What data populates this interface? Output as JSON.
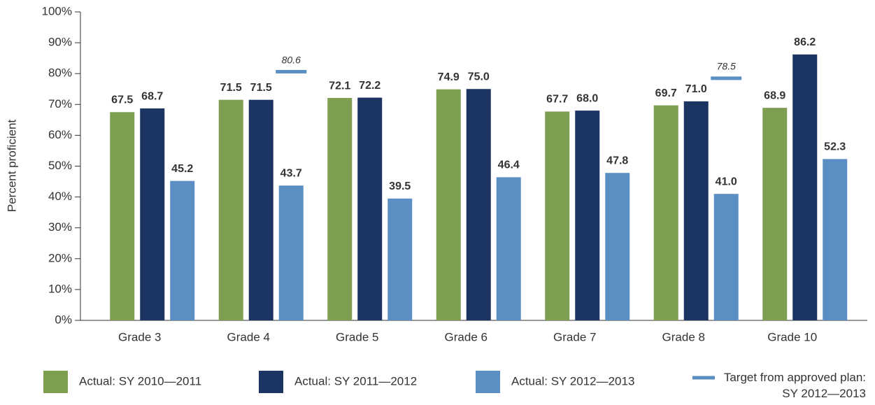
{
  "chart_data": {
    "type": "bar",
    "y_label": "Percent proficient",
    "categories": [
      "Grade 3",
      "Grade 4",
      "Grade 5",
      "Grade 6",
      "Grade 7",
      "Grade 8",
      "Grade 10"
    ],
    "series": [
      {
        "name": "Actual: SY 2010—2011",
        "color": "#7e9e52",
        "values": [
          67.5,
          71.5,
          72.1,
          74.9,
          67.7,
          69.7,
          68.9
        ],
        "value_labels": [
          "67.5",
          "71.5",
          "72.1",
          "74.9",
          "67.7",
          "69.7",
          "68.9"
        ]
      },
      {
        "name": "Actual: SY 2011—2012",
        "color": "#1c3461",
        "values": [
          68.7,
          71.5,
          72.2,
          75.0,
          68.0,
          71.0,
          86.2
        ],
        "value_labels": [
          "68.7",
          "71.5",
          "72.2",
          "75.0",
          "68.0",
          "71.0",
          "86.2"
        ]
      },
      {
        "name": "Actual: SY 2012—2013",
        "color": "#5b8fc4",
        "values": [
          45.2,
          43.7,
          39.5,
          46.4,
          47.8,
          41.0,
          52.3
        ],
        "value_labels": [
          "45.2",
          "43.7",
          "39.5",
          "46.4",
          "47.8",
          "41.0",
          "52.3"
        ]
      },
      {
        "name": "Target from approved plan: SY 2012—2013",
        "color": "#5b8fc4",
        "marker": "line",
        "values": [
          null,
          80.6,
          null,
          null,
          null,
          78.5,
          null
        ],
        "value_labels": [
          null,
          "80.6",
          null,
          null,
          null,
          "78.5",
          null
        ]
      }
    ],
    "ylim": [
      0,
      100
    ],
    "yticks": [
      {
        "value": 0,
        "label": "0%"
      },
      {
        "value": 10,
        "label": "10%"
      },
      {
        "value": 20,
        "label": "20%"
      },
      {
        "value": 30,
        "label": "30%"
      },
      {
        "value": 40,
        "label": "40%"
      },
      {
        "value": 50,
        "label": "50%"
      },
      {
        "value": 60,
        "label": "60%"
      },
      {
        "value": 70,
        "label": "70%"
      },
      {
        "value": 80,
        "label": "80%"
      },
      {
        "value": 90,
        "label": "90%"
      },
      {
        "value": 100,
        "label": "100%"
      }
    ],
    "grid": false
  }
}
